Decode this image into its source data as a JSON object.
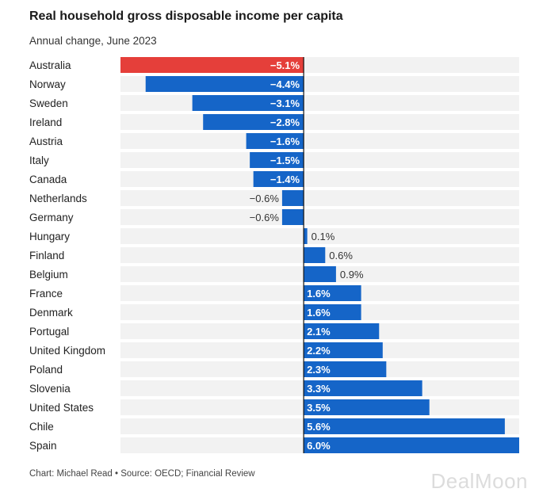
{
  "colors": {
    "negative_highlight": "#e53f3a",
    "bar": "#1565c8",
    "track": "#f2f2f2",
    "zero_line": "#111111"
  },
  "watermark": "DealMoon",
  "chart_data": {
    "type": "bar",
    "orientation": "horizontal",
    "title": "Real household gross disposable income per capita",
    "subtitle": "Annual change, June 2023",
    "xlabel": "",
    "ylabel": "",
    "xlim": [
      -5.1,
      6.0
    ],
    "highlight_category": "Australia",
    "categories": [
      "Australia",
      "Norway",
      "Sweden",
      "Ireland",
      "Austria",
      "Italy",
      "Canada",
      "Netherlands",
      "Germany",
      "Hungary",
      "Finland",
      "Belgium",
      "France",
      "Denmark",
      "Portugal",
      "United Kingdom",
      "Poland",
      "Slovenia",
      "United States",
      "Chile",
      "Spain"
    ],
    "values": [
      -5.1,
      -4.4,
      -3.1,
      -2.8,
      -1.6,
      -1.5,
      -1.4,
      -0.6,
      -0.6,
      0.1,
      0.6,
      0.9,
      1.6,
      1.6,
      2.1,
      2.2,
      2.3,
      3.3,
      3.5,
      5.6,
      6.0
    ],
    "labels": [
      "−5.1%",
      "−4.4%",
      "−3.1%",
      "−2.8%",
      "−1.6%",
      "−1.5%",
      "−1.4%",
      "−0.6%",
      "−0.6%",
      "0.1%",
      "0.6%",
      "0.9%",
      "1.6%",
      "1.6%",
      "2.1%",
      "2.2%",
      "2.3%",
      "3.3%",
      "3.5%",
      "5.6%",
      "6.0%"
    ],
    "footer": "Chart: Michael Read • Source: OECD; Financial Review"
  }
}
